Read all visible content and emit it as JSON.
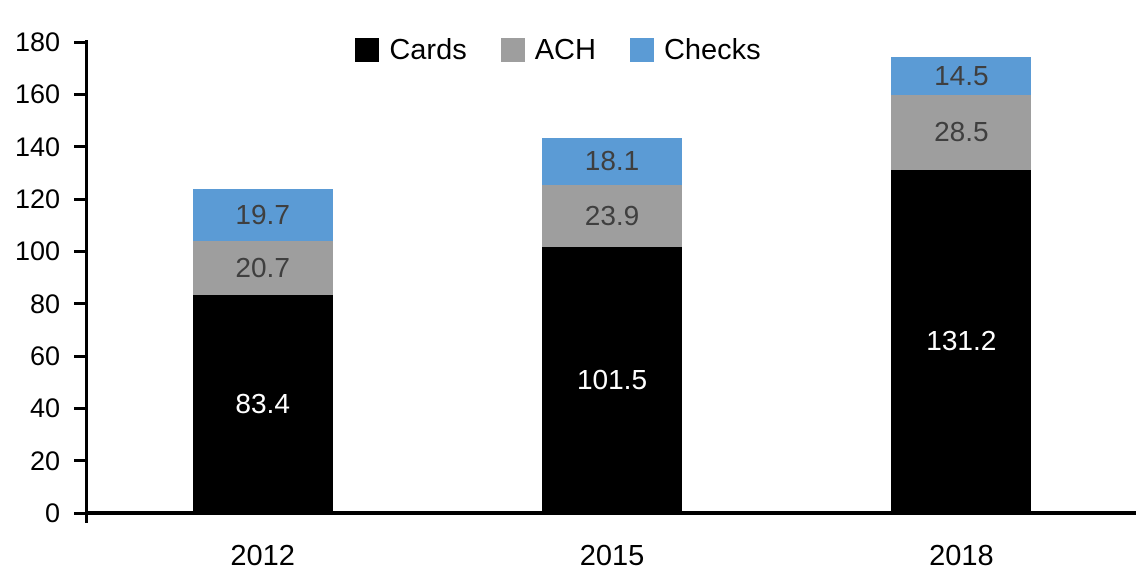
{
  "chart_data": {
    "type": "bar",
    "stacked": true,
    "categories": [
      "2012",
      "2015",
      "2018"
    ],
    "series": [
      {
        "name": "Cards",
        "color": "#000000",
        "label_color": "#FFFFFF",
        "values": [
          83.4,
          101.5,
          131.2
        ]
      },
      {
        "name": "ACH",
        "color": "#9E9E9E",
        "label_color": "#3F3F3F",
        "values": [
          20.7,
          23.9,
          28.5
        ]
      },
      {
        "name": "Checks",
        "color": "#5B9BD5",
        "label_color": "#3F3F3F",
        "values": [
          19.7,
          18.1,
          14.5
        ]
      }
    ],
    "totals": [
      123.8,
      143.5,
      174.2
    ],
    "ylim": [
      0,
      180
    ],
    "ytick_interval": 20,
    "ytick_labels": [
      "0",
      "20",
      "40",
      "60",
      "80",
      "100",
      "120",
      "140",
      "160",
      "180"
    ],
    "legend_entries": [
      "Cards",
      "ACH",
      "Checks"
    ],
    "legend_position": "top-center",
    "grid": false,
    "axis_color": "#000000",
    "value_label_decimals": 1
  }
}
